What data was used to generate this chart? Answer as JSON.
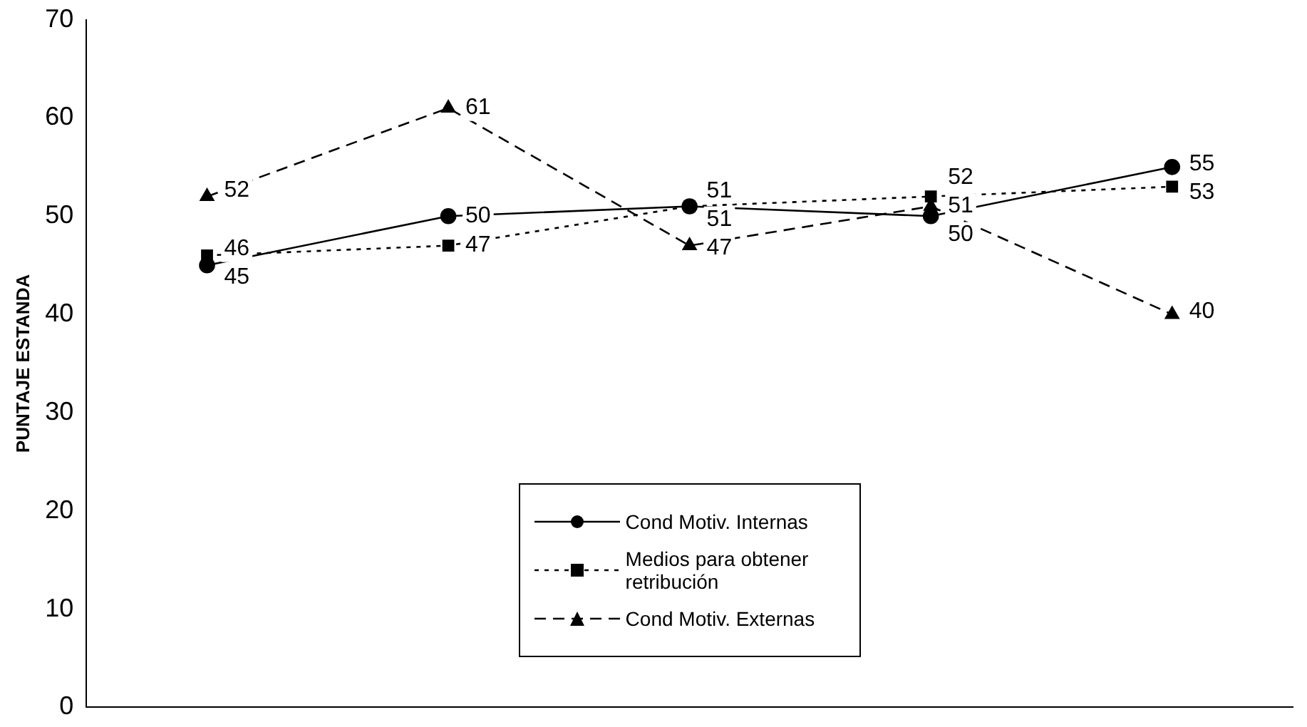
{
  "chart_data": {
    "type": "line",
    "ylabel": "PUNTAJE ESTANDA",
    "categories": [
      null,
      null,
      null,
      null,
      null
    ],
    "series": [
      {
        "name": "Cond Motiv. Internas",
        "color": "#000000",
        "marker": "circle",
        "line_style": "solid",
        "values": [
          45,
          50,
          51,
          50,
          55
        ]
      },
      {
        "name": "Medios para obtener retribución",
        "color": "#000000",
        "marker": "square",
        "line_style": "dotted",
        "values": [
          46,
          47,
          51,
          52,
          53
        ]
      },
      {
        "name": "Cond Motiv. Externas",
        "color": "#000000",
        "marker": "triangle",
        "line_style": "dashed",
        "values": [
          52,
          61,
          47,
          51,
          40
        ]
      }
    ],
    "ylim": [
      0,
      70
    ],
    "yticks": [
      0,
      10,
      20,
      30,
      40,
      50,
      60,
      70
    ],
    "grid": false,
    "legend": "bottom",
    "tick_labels": "y",
    "data_labels": true
  }
}
